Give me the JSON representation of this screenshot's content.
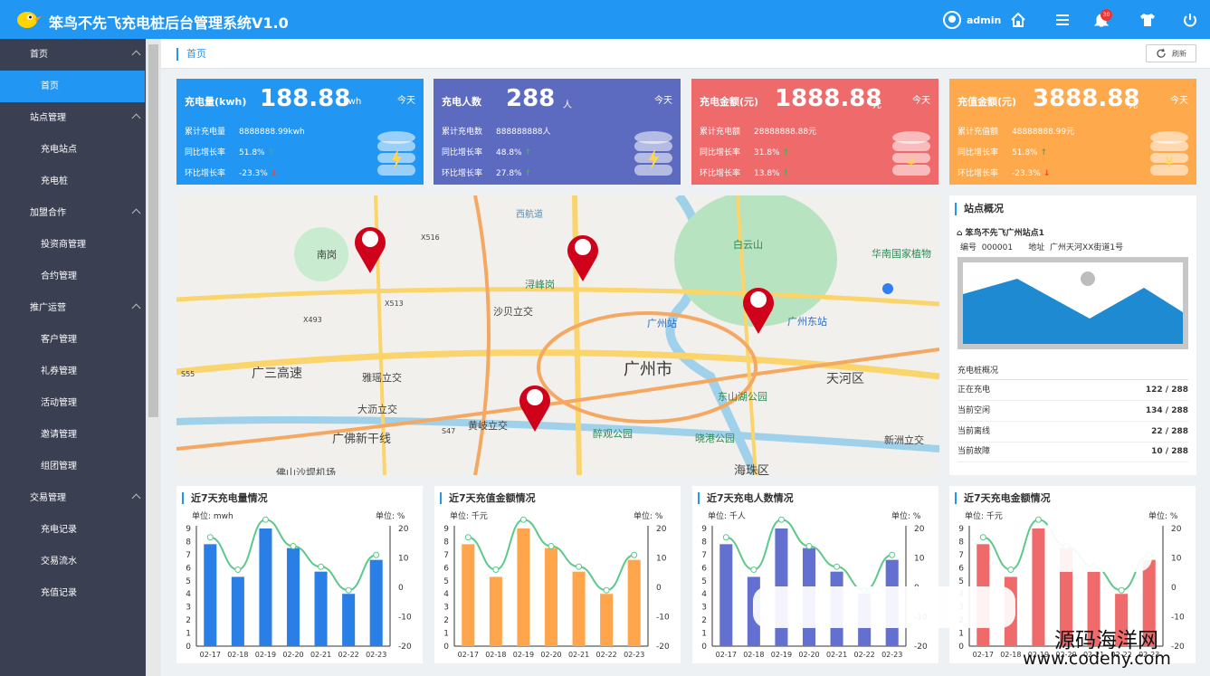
{
  "header": {
    "title": "笨鸟不先飞充电桩后台管理系统V1.0",
    "user": "admin",
    "badge_count": "30"
  },
  "sidebar": {
    "groups": [
      {
        "label": "首页",
        "items": [
          "首页"
        ]
      },
      {
        "label": "站点管理",
        "items": [
          "充电站点",
          "充电桩"
        ]
      },
      {
        "label": "加盟合作",
        "items": [
          "投资商管理",
          "合约管理"
        ]
      },
      {
        "label": "推广运营",
        "items": [
          "客户管理",
          "礼券管理",
          "活动管理",
          "邀请管理",
          "组团管理"
        ]
      },
      {
        "label": "交易管理",
        "items": [
          "充电记录",
          "交易流水",
          "充值记录"
        ]
      }
    ],
    "active": "首页"
  },
  "breadcrumb": "首页",
  "refresh_label": "刷新",
  "cards": [
    {
      "title": "充电量(kwh)",
      "value": "188.88",
      "unit": "kwh",
      "today": "今天",
      "color": "#2196f3",
      "rows": [
        {
          "label": "累计充电量",
          "value": "8888888.99kwh"
        },
        {
          "label": "同比增长率",
          "value": "51.8%",
          "trend": "↑"
        },
        {
          "label": "环比增长率",
          "value": "-23.3%",
          "trend": "↓"
        }
      ]
    },
    {
      "title": "充电人数",
      "value": "288",
      "unit": "人",
      "today": "今天",
      "color": "#5c6bc0",
      "rows": [
        {
          "label": "累计充电数",
          "value": "888888888人"
        },
        {
          "label": "同比增长率",
          "value": "48.8%",
          "trend": "↑"
        },
        {
          "label": "环比增长率",
          "value": "27.8%",
          "trend": "↑"
        }
      ]
    },
    {
      "title": "充电金额(元)",
      "value": "1888.88",
      "unit": "元",
      "today": "今天",
      "color": "#ef6b6b",
      "rows": [
        {
          "label": "累计充电额",
          "value": "28888888.88元"
        },
        {
          "label": "同比增长率",
          "value": "31.8%",
          "trend": "↑"
        },
        {
          "label": "环比增长率",
          "value": "13.8%",
          "trend": "↑"
        }
      ]
    },
    {
      "title": "充值金额(元)",
      "value": "3888.88",
      "unit": "元",
      "today": "今天",
      "color": "#ffa94d",
      "rows": [
        {
          "label": "累计充值额",
          "value": "48888888.99元"
        },
        {
          "label": "同比增长率",
          "value": "51.8%",
          "trend": "↑"
        },
        {
          "label": "环比增长率",
          "value": "-23.3%",
          "trend": "↓"
        }
      ]
    }
  ],
  "map": {
    "labels": [
      "南岗",
      "X516",
      "X513",
      "X493",
      "S55",
      "广三高速",
      "雅瑶立交",
      "大沥立交",
      "广佛新干线",
      "S47",
      "黄岐立交",
      "西航道",
      "浔峰岗",
      "沙贝立交",
      "广州站",
      "广州东站",
      "白云山",
      "华南国家植物",
      "广州市",
      "天河区",
      "东山湖公园",
      "醉观公园",
      "晓港公园",
      "新洲立交",
      "海珠区",
      "佛山沙堤机场"
    ]
  },
  "station": {
    "panel_title": "站点概况",
    "name": "笨鸟不先飞广州站点1",
    "no_label": "编号",
    "no": "000001",
    "addr_label": "地址",
    "addr": "广州天河XX街道1号",
    "sub_title": "充电桩概况",
    "stats": [
      {
        "label": "正在充电",
        "value": "122 / 288"
      },
      {
        "label": "当前空闲",
        "value": "134 / 288"
      },
      {
        "label": "当前离线",
        "value": "22 / 288"
      },
      {
        "label": "当前故障",
        "value": "10 / 288"
      }
    ]
  },
  "chart_data": [
    {
      "type": "bar",
      "title": "近7天充电量情况",
      "unit_left": "单位:  mwh",
      "unit_right": "单位:  %",
      "color": "#2a7fe6",
      "categories": [
        "02-17",
        "02-18",
        "02-19",
        "02-20",
        "02-21",
        "02-22",
        "02-23"
      ],
      "series": [
        {
          "type": "bar",
          "values": [
            7.8,
            5.3,
            9.0,
            7.5,
            5.7,
            4.0,
            6.6
          ]
        },
        {
          "type": "line",
          "values": [
            17,
            6,
            23,
            14,
            7,
            -1,
            11
          ]
        }
      ],
      "ylim": [
        0,
        9
      ],
      "y2lim": [
        -20,
        20
      ]
    },
    {
      "type": "bar",
      "title": "近7天充值金额情况",
      "unit_left": "单位:  千元",
      "unit_right": "单位:  %",
      "color": "#ffa64d",
      "categories": [
        "02-17",
        "02-18",
        "02-19",
        "02-20",
        "02-21",
        "02-22",
        "02-23"
      ],
      "series": [
        {
          "type": "bar",
          "values": [
            7.8,
            5.3,
            9.0,
            7.5,
            5.7,
            4.0,
            6.6
          ]
        },
        {
          "type": "line",
          "values": [
            17,
            6,
            23,
            14,
            7,
            -1,
            11
          ]
        }
      ],
      "ylim": [
        0,
        9
      ],
      "y2lim": [
        -20,
        20
      ]
    },
    {
      "type": "bar",
      "title": "近7天充电人数情况",
      "unit_left": "单位:  千人",
      "unit_right": "单位:  %",
      "color": "#6470d0",
      "categories": [
        "02-17",
        "02-18",
        "02-19",
        "02-20",
        "02-21",
        "02-22",
        "02-23"
      ],
      "series": [
        {
          "type": "bar",
          "values": [
            7.8,
            5.3,
            9.0,
            7.5,
            5.7,
            4.0,
            6.6
          ]
        },
        {
          "type": "line",
          "values": [
            17,
            6,
            23,
            14,
            7,
            -1,
            11
          ]
        }
      ],
      "ylim": [
        0,
        9
      ],
      "y2lim": [
        -20,
        20
      ]
    },
    {
      "type": "bar",
      "title": "近7天充电金额情况",
      "unit_left": "单位:  千元",
      "unit_right": "单位:  %",
      "color": "#ef6b6b",
      "categories": [
        "02-17",
        "02-18",
        "02-19",
        "02-20",
        "02-21",
        "02-22",
        "02-23"
      ],
      "series": [
        {
          "type": "bar",
          "values": [
            7.8,
            5.3,
            9.0,
            7.5,
            5.7,
            4.0,
            6.6
          ]
        },
        {
          "type": "line",
          "values": [
            17,
            6,
            23,
            14,
            7,
            -1,
            11
          ]
        }
      ],
      "ylim": [
        0,
        9
      ],
      "y2lim": [
        -20,
        20
      ]
    }
  ],
  "watermark": {
    "line1": "源码海洋网",
    "line2": "www.codehy.com"
  }
}
